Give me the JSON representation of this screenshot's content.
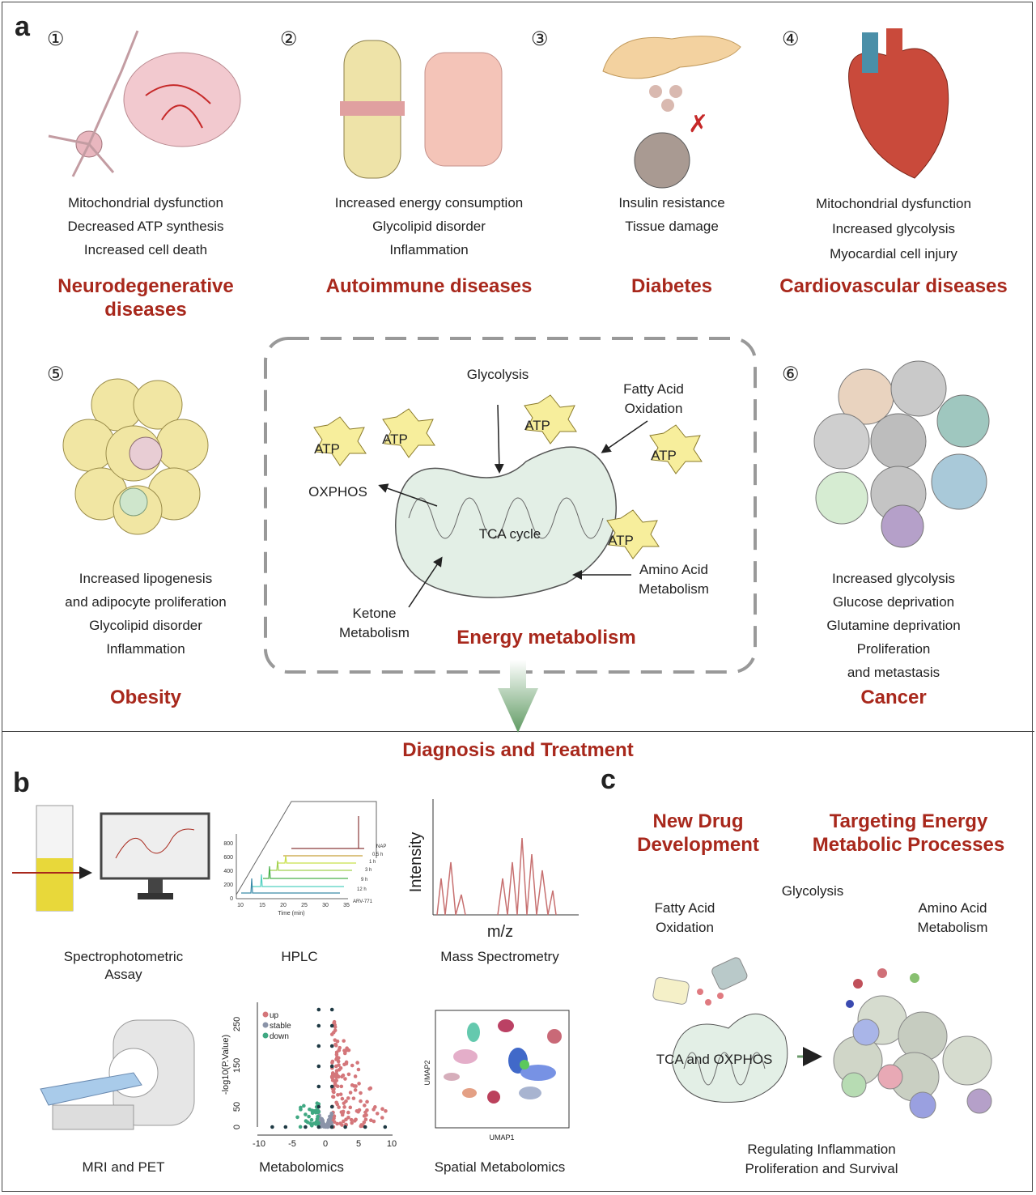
{
  "panels": {
    "a": "a",
    "b": "b",
    "c": "c"
  },
  "diseases": [
    {
      "num": "①",
      "lines": [
        "Mitochondrial dysfunction",
        "Decreased ATP synthesis",
        "Increased cell death"
      ],
      "title": "Neurodegenerative diseases"
    },
    {
      "num": "②",
      "lines": [
        "Increased energy consumption",
        "Glycolipid disorder",
        "Inflammation"
      ],
      "title": "Autoimmune diseases"
    },
    {
      "num": "③",
      "lines": [
        "Insulin resistance",
        "Tissue damage"
      ],
      "title": "Diabetes"
    },
    {
      "num": "④",
      "lines": [
        "Mitochondrial dysfunction",
        "Increased glycolysis",
        "Myocardial cell injury"
      ],
      "title": "Cardiovascular diseases"
    },
    {
      "num": "⑤",
      "lines": [
        "Increased lipogenesis",
        "and adipocyte proliferation",
        "Glycolipid disorder",
        "Inflammation"
      ],
      "title": "Obesity"
    },
    {
      "num": "⑥",
      "lines": [
        "Increased glycolysis",
        "Glucose deprivation",
        "Glutamine deprivation",
        "Proliferation",
        "and metastasis"
      ],
      "title": "Cancer"
    }
  ],
  "energy": {
    "title": "Energy metabolism",
    "glycolysis": "Glycolysis",
    "fatty_acid": "Fatty Acid Oxidation",
    "oxphos": "OXPHOS",
    "tca": "TCA cycle",
    "amino": "Amino Acid Metabolism",
    "ketone": "Ketone Metabolism",
    "atp": "ATP"
  },
  "diagnosis_title": "Diagnosis and Treatment",
  "methods": [
    "Spectrophotometric Assay",
    "HPLC",
    "Mass Spectrometry",
    "MRI and PET",
    "Metabolomics",
    "Spatial Metabolomics"
  ],
  "hplc": {
    "yticks": [
      "0",
      "200",
      "400",
      "600",
      "800"
    ],
    "xticks": [
      "10",
      "15",
      "20",
      "25",
      "30",
      "35"
    ],
    "xlabel": "Time (min)",
    "series": [
      "NAP",
      "0.5 h",
      "1 h",
      "3 h",
      "9 h",
      "12 h",
      "ARV-771"
    ]
  },
  "ms": {
    "ylabel": "Intensity",
    "xlabel": "m/z"
  },
  "volcano": {
    "ylabel": "-log10(P.Value)",
    "yticks": [
      "0",
      "50",
      "150",
      "250"
    ],
    "xticks": [
      "-10",
      "-5",
      "0",
      "5",
      "10"
    ],
    "legend": [
      {
        "label": "up",
        "color": "#d4767a"
      },
      {
        "label": "stable",
        "color": "#8a93a8"
      },
      {
        "label": "down",
        "color": "#3fa882"
      }
    ]
  },
  "umap": {
    "xlabel": "UMAP1",
    "ylabel": "UMAP2"
  },
  "treatment": {
    "new_drug": "New Drug Development",
    "targeting": "Targeting Energy Metabolic Processes",
    "glycolysis": "Glycolysis",
    "fatty_acid": "Fatty Acid Oxidation",
    "amino": "Amino Acid Metabolism",
    "tca_oxphos": "TCA and OXPHOS",
    "regulating": "Regulating Inflammation Proliferation and Survival"
  },
  "colors": {
    "title_red": "#a8281c",
    "mito_fill": "#e3efe6",
    "atp_fill": "#f7ee9c",
    "arrow_green": "#5f9a62"
  }
}
